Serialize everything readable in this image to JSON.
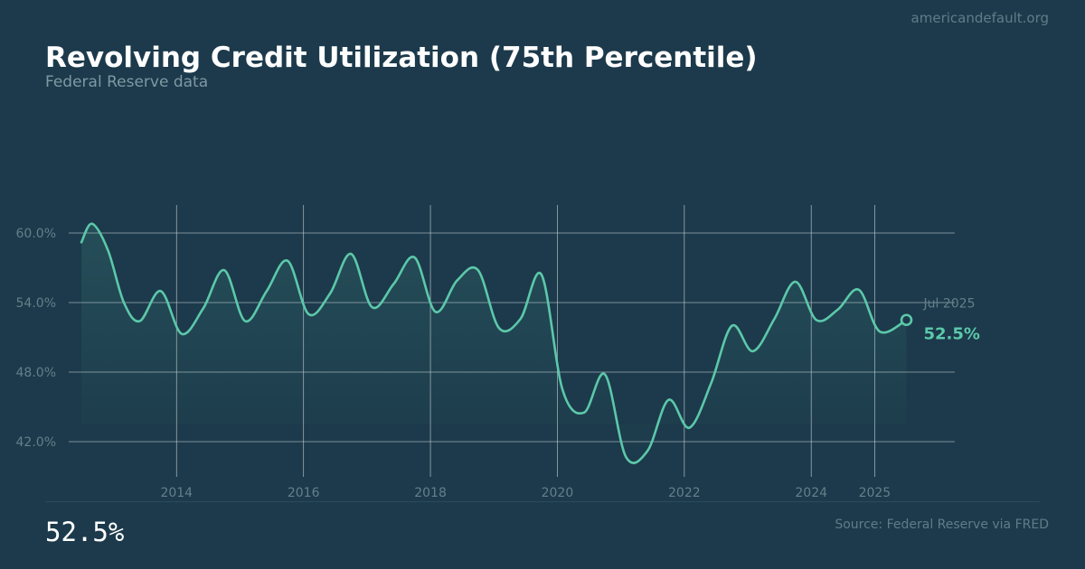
{
  "header": {
    "site": "americandefault.org",
    "title": "Revolving Credit Utilization (75th Percentile)",
    "subtitle": "Federal Reserve data"
  },
  "footer": {
    "big_value": "52.5%",
    "source": "Source: Federal Reserve via FRED"
  },
  "colors": {
    "background": "#1c3a4b",
    "line": "#5cc8aa",
    "grid": "#c9d3d8",
    "tick_label": "#657f8a",
    "current_label": "#5cc8aa"
  },
  "chart_data": {
    "type": "area",
    "title": "Revolving Credit Utilization (75th Percentile)",
    "xlabel": "",
    "ylabel": "",
    "xlim": [
      2012.5,
      2025.75
    ],
    "ylim": [
      39.5,
      62.5
    ],
    "x_ticks": [
      2014,
      2016,
      2018,
      2020,
      2022,
      2024,
      2025
    ],
    "x_tick_labels": [
      "2014",
      "2016",
      "2018",
      "2020",
      "2022",
      "2024",
      "2025"
    ],
    "y_ticks": [
      42,
      48,
      54,
      60
    ],
    "y_tick_labels": [
      "42.0%",
      "48.0%",
      "54.0%",
      "60.0%"
    ],
    "grid": true,
    "legend": "none",
    "current": {
      "date_label": "Jul 2025",
      "value_label": "52.5%",
      "x": 2025.5,
      "y": 52.5
    },
    "series": [
      {
        "x": [
          2012.5,
          2012.67,
          2012.92,
          2013.17,
          2013.42,
          2013.75,
          2014.08,
          2014.42,
          2014.75,
          2015.08,
          2015.42,
          2015.75,
          2016.08,
          2016.42,
          2016.75,
          2017.08,
          2017.42,
          2017.75,
          2018.08,
          2018.42,
          2018.75,
          2019.08,
          2019.42,
          2019.75,
          2020.08,
          2020.42,
          2020.75,
          2021.08,
          2021.42,
          2021.75,
          2022.08,
          2022.42,
          2022.75,
          2023.08,
          2023.42,
          2023.75,
          2024.08,
          2024.42,
          2024.75,
          2025.08,
          2025.5
        ],
        "y": [
          59.2,
          60.8,
          58.5,
          54.0,
          52.4,
          55.0,
          51.3,
          53.5,
          56.8,
          52.4,
          55.0,
          57.6,
          53.0,
          54.8,
          58.2,
          53.6,
          55.6,
          57.9,
          53.2,
          55.9,
          56.8,
          51.8,
          52.6,
          56.4,
          46.5,
          44.5,
          47.8,
          40.7,
          41.2,
          45.6,
          43.2,
          47.0,
          52.0,
          49.8,
          52.6,
          55.8,
          52.5,
          53.4,
          55.1,
          51.5,
          52.5
        ]
      }
    ]
  }
}
